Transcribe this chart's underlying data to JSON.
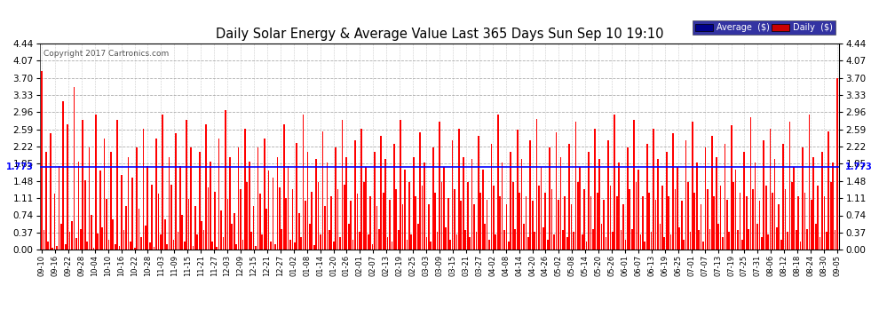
{
  "title": "Daily Solar Energy & Average Value Last 365 Days Sun Sep 10 19:10",
  "copyright": "Copyright 2017 Cartronics.com",
  "average_value": 1.773,
  "bar_color": "#FF0000",
  "average_line_color": "#0000FF",
  "background_color": "#FFFFFF",
  "plot_bg_color": "#FFFFFF",
  "ylim": [
    0.0,
    4.44
  ],
  "yticks": [
    0.0,
    0.37,
    0.74,
    1.11,
    1.48,
    1.85,
    2.22,
    2.59,
    2.96,
    3.33,
    3.7,
    4.07,
    4.44
  ],
  "legend_avg_color": "#00008B",
  "legend_daily_color": "#CC0000",
  "x_labels": [
    "09-10",
    "09-16",
    "09-22",
    "09-28",
    "10-04",
    "10-10",
    "10-16",
    "10-22",
    "10-28",
    "11-03",
    "11-09",
    "11-15",
    "11-21",
    "11-27",
    "12-03",
    "12-09",
    "12-15",
    "12-21",
    "12-27",
    "01-02",
    "01-08",
    "01-14",
    "01-20",
    "01-26",
    "02-01",
    "02-07",
    "02-13",
    "02-19",
    "02-25",
    "03-03",
    "03-09",
    "03-15",
    "03-21",
    "03-27",
    "04-02",
    "04-08",
    "04-14",
    "04-20",
    "04-26",
    "05-02",
    "05-08",
    "05-14",
    "05-20",
    "05-26",
    "06-01",
    "06-07",
    "06-13",
    "06-19",
    "06-25",
    "07-01",
    "07-07",
    "07-13",
    "07-19",
    "07-25",
    "07-31",
    "08-06",
    "08-12",
    "08-18",
    "08-24",
    "08-30",
    "09-05"
  ],
  "bar_data": [
    3.85,
    0.42,
    2.1,
    0.18,
    2.5,
    0.05,
    1.2,
    0.08,
    1.8,
    0.55,
    3.2,
    0.12,
    2.7,
    0.38,
    0.62,
    3.5,
    0.25,
    1.9,
    0.44,
    2.8,
    1.5,
    0.18,
    2.2,
    0.75,
    0.05,
    2.9,
    0.35,
    1.7,
    0.48,
    2.4,
    1.1,
    0.22,
    2.1,
    0.65,
    0.12,
    2.8,
    0.08,
    1.6,
    0.42,
    0.95,
    2.0,
    0.18,
    1.55,
    0.05,
    2.2,
    0.88,
    0.28,
    2.6,
    0.52,
    1.8,
    0.15,
    1.4,
    0.06,
    2.4,
    1.2,
    0.32,
    2.9,
    0.65,
    0.12,
    2.0,
    1.4,
    0.22,
    2.5,
    0.38,
    1.8,
    0.75,
    0.18,
    2.8,
    1.1,
    2.2,
    0.08,
    0.95,
    0.32,
    2.1,
    0.62,
    0.42,
    2.7,
    1.35,
    1.9,
    0.18,
    1.25,
    0.06,
    2.4,
    0.85,
    0.28,
    3.0,
    1.1,
    2.0,
    0.55,
    0.78,
    0.12,
    2.2,
    1.3,
    0.22,
    2.6,
    1.45,
    1.9,
    0.38,
    0.95,
    0.08,
    2.2,
    1.2,
    0.32,
    2.4,
    0.88,
    1.7,
    0.18,
    1.55,
    0.12,
    2.0,
    1.35,
    0.45,
    2.7,
    1.12,
    1.8,
    0.22,
    1.3,
    0.15,
    2.3,
    0.78,
    0.28,
    2.9,
    1.05,
    2.1,
    0.55,
    1.25,
    0.1,
    1.95,
    1.45,
    0.32,
    2.55,
    0.95,
    1.88,
    0.42,
    1.15,
    0.18,
    2.2,
    1.3,
    0.28,
    2.8,
    1.4,
    2.0,
    0.55,
    1.05,
    0.22,
    2.35,
    1.2,
    0.38,
    2.6,
    1.45,
    1.78,
    0.32,
    1.15,
    0.12,
    2.1,
    0.95,
    0.45,
    2.45,
    1.22,
    1.95,
    0.28,
    1.08,
    0.18,
    2.28,
    1.3,
    0.42,
    2.8,
    0.98,
    1.72,
    0.22,
    1.45,
    0.32,
    2.0,
    1.15,
    0.55,
    2.52,
    1.38,
    1.88,
    0.28,
    0.98,
    0.18,
    2.2,
    1.22,
    0.38,
    2.75,
    1.45,
    1.78,
    0.48,
    1.12,
    0.22,
    2.35,
    1.3,
    0.32,
    2.6,
    1.05,
    2.0,
    0.42,
    1.45,
    0.28,
    1.95,
    0.98,
    0.38,
    2.45,
    1.22,
    1.72,
    0.55,
    1.08,
    0.22,
    2.28,
    1.38,
    0.32,
    2.9,
    1.15,
    1.88,
    0.42,
    0.98,
    0.18,
    2.1,
    1.45,
    0.45,
    2.58,
    1.22,
    1.95,
    0.55,
    1.15,
    0.28,
    2.35,
    1.05,
    0.38,
    2.82,
    1.38,
    1.78,
    0.48,
    1.22,
    0.22,
    2.2,
    1.3,
    0.32,
    2.52,
    1.08,
    2.0,
    0.42,
    1.15,
    0.28,
    2.28,
    0.98,
    0.38,
    2.75,
    1.45,
    1.78,
    0.32,
    1.3,
    0.18,
    2.1,
    1.15,
    0.45,
    2.6,
    1.22,
    1.95,
    0.55,
    1.08,
    0.28,
    2.35,
    1.38,
    0.38,
    2.9,
    1.15,
    1.88,
    0.42,
    0.98,
    0.22,
    2.2,
    1.3,
    0.45,
    2.8,
    1.45,
    1.72,
    0.32,
    1.15,
    0.18,
    2.28,
    1.22,
    0.38,
    2.6,
    1.08,
    1.95,
    0.55,
    1.38,
    0.28,
    2.1,
    1.15,
    0.32,
    2.5,
    1.3,
    1.78,
    0.48,
    1.05,
    0.22,
    2.35,
    1.45,
    0.38,
    2.75,
    1.22,
    1.88,
    0.42,
    0.98,
    0.18,
    2.2,
    1.3,
    0.45,
    2.45,
    1.15,
    2.0,
    0.55,
    1.38,
    0.28,
    2.28,
    1.08,
    0.38,
    2.68,
    1.45,
    1.72,
    0.42,
    1.22,
    0.22,
    2.1,
    1.15,
    0.45,
    2.85,
    1.3,
    1.88,
    0.55,
    1.05,
    0.28,
    2.35,
    1.38,
    0.32,
    2.6,
    1.22,
    1.95,
    0.48,
    0.98,
    0.22,
    2.28,
    1.3,
    0.38,
    2.75,
    1.45,
    1.78,
    0.42,
    1.15,
    0.18,
    2.2,
    1.22,
    0.45,
    2.9,
    1.08,
    2.0,
    0.55,
    1.38,
    0.28,
    2.1,
    1.15,
    0.38,
    2.55,
    1.45,
    1.88,
    0.42,
    3.7
  ]
}
